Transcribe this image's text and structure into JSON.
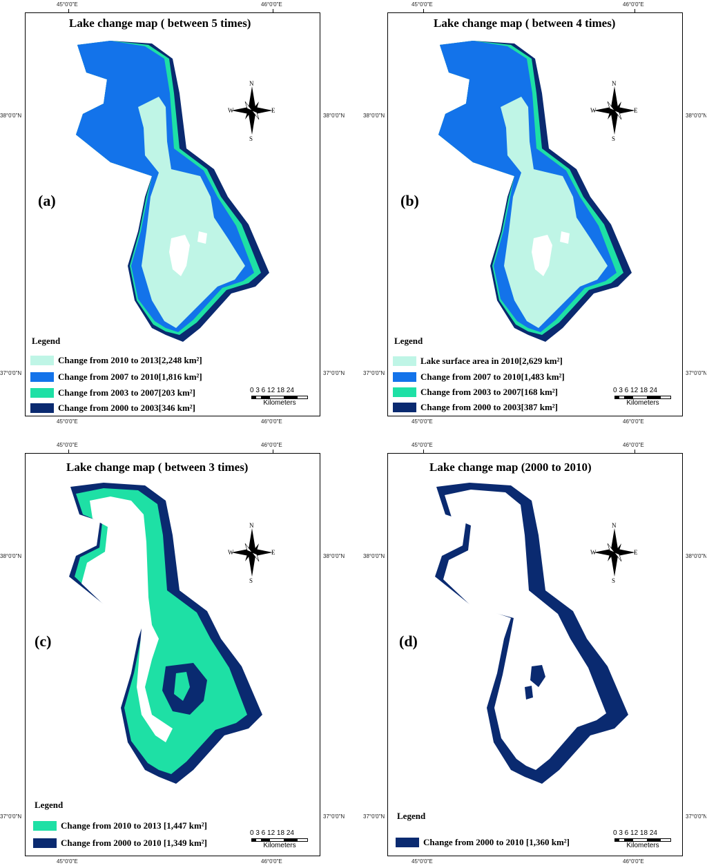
{
  "coords": {
    "top_lon_1": "45°0'0\"E",
    "top_lon_2": "46°0'0\"E",
    "lat_1": "38°0'0\"N",
    "lat_2": "37°0'0\"N"
  },
  "compass": {
    "n": "N",
    "s": "S",
    "e": "E",
    "w": "W"
  },
  "scale": {
    "nums": "0 3 6    12   18   24",
    "unit": "Kilometers"
  },
  "colors": {
    "light_cyan": "#bff5e6",
    "blue": "#1373ea",
    "green": "#1ee0a5",
    "navy": "#0a2a70"
  },
  "panels": [
    {
      "title": "Lake change map ( between 5 times)",
      "letter": "(a)",
      "legend_title": "Legend",
      "legend": [
        {
          "label": "Change from 2010 to 2013[2,248 km²]",
          "color": "#bff5e6"
        },
        {
          "label": "Change from 2007 to 2010[1,816 km²]",
          "color": "#1373ea"
        },
        {
          "label": "Change from 2003 to 2007[203 km²]",
          "color": "#1ee0a5"
        },
        {
          "label": "Change from 2000 to 2003[346 km²]",
          "color": "#0a2a70"
        }
      ]
    },
    {
      "title": "Lake change map ( between 4 times)",
      "letter": "(b)",
      "legend_title": "Legend",
      "legend": [
        {
          "label": "Lake surface area in 2010[2,629 km²]",
          "color": "#bff5e6"
        },
        {
          "label": "Change from 2007 to 2010[1,483 km²]",
          "color": "#1373ea"
        },
        {
          "label": "Change from 2003 to 2007[168 km²]",
          "color": "#1ee0a5"
        },
        {
          "label": "Change from 2000 to 2003[387 km²]",
          "color": "#0a2a70"
        }
      ]
    },
    {
      "title": "Lake change map ( between 3 times)",
      "letter": "(c)",
      "legend_title": "Legend",
      "legend": [
        {
          "label": "Change from 2010 to 2013 [1,447 km²]",
          "color": "#1ee0a5"
        },
        {
          "label": "Change from 2000 to 2010 [1,349 km²]",
          "color": "#0a2a70"
        }
      ]
    },
    {
      "title": "Lake change map (2000 to 2010)",
      "letter": "(d)",
      "legend_title": "Legend",
      "legend": [
        {
          "label": "Change from 2000 to 2010 [1,360 km²]",
          "color": "#0a2a70"
        }
      ]
    }
  ]
}
